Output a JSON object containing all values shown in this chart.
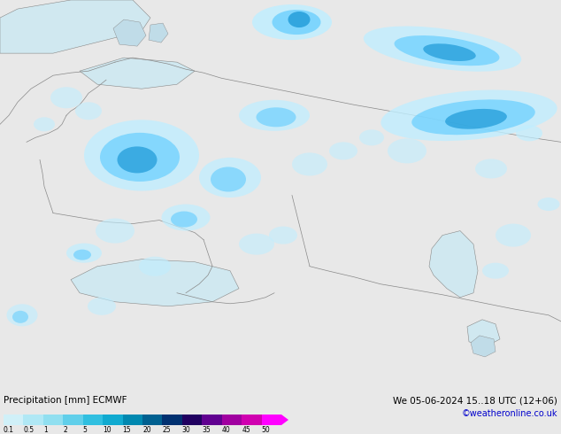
{
  "title_left": "Precipitation [mm] ECMWF",
  "title_right_line1": "We 05-06-2024 15..18 UTC (12+06)",
  "title_right_line2": "©weatheronline.co.uk",
  "colorbar_labels": [
    "0.1",
    "0.5",
    "1",
    "2",
    "5",
    "10",
    "15",
    "20",
    "25",
    "30",
    "35",
    "40",
    "45",
    "50"
  ],
  "colorbar_colors": [
    "#d0f0f8",
    "#b0e8f5",
    "#90dff0",
    "#60cfea",
    "#30bfe0",
    "#10aad0",
    "#0088b0",
    "#006090",
    "#003070",
    "#200060",
    "#600090",
    "#a000a0",
    "#d000b0",
    "#ff00ff"
  ],
  "land_color": "#b0d890",
  "sea_color": "#d0e8f0",
  "lake_color": "#c0dce8",
  "border_color": "#888888",
  "precip_light_color": "#c0eeff",
  "precip_mid_color": "#60ccff",
  "precip_heavy_color": "#0088cc",
  "bottom_bg": "#e8e8e8",
  "text_color": "#000000",
  "right_text_color": "#0000cc",
  "figure_width": 6.34,
  "figure_height": 4.9,
  "dpi": 100
}
